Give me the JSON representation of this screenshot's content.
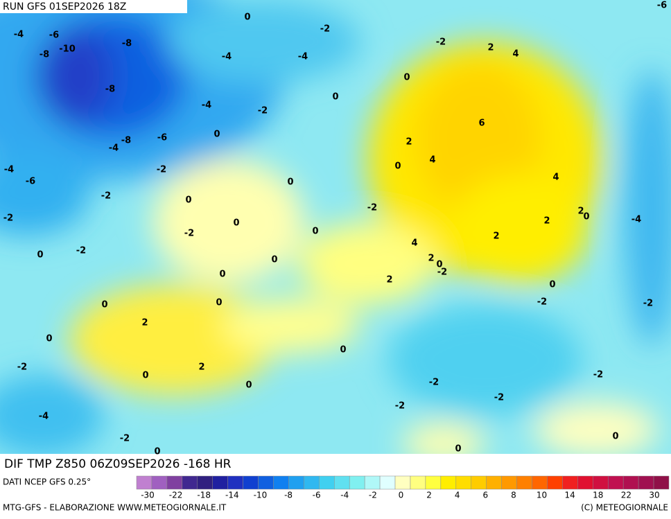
{
  "header": {
    "run": "RUN GFS 01SEP2026 18Z"
  },
  "map": {
    "title": "DIF TMP Z850 06Z09SEP2026 -168 HR",
    "labels": [
      0,
      -4,
      -6,
      -2,
      -6,
      -8,
      -10,
      -8,
      -4,
      -4,
      -2,
      2,
      4,
      0,
      -8,
      0,
      -4,
      -2,
      6,
      0,
      -4,
      -8,
      -6,
      2,
      4,
      0,
      -4,
      -2,
      -6,
      0,
      4,
      -2,
      0,
      -2,
      2,
      0,
      -2,
      0,
      2,
      -4,
      0,
      -2,
      2,
      4,
      -2,
      0,
      0,
      2,
      0,
      -2,
      0,
      2,
      0,
      0,
      -2,
      -2,
      0,
      2,
      0,
      0,
      -2,
      2,
      0,
      0,
      -2,
      -2,
      -2,
      -2,
      -4,
      -2,
      0,
      0,
      0
    ]
  },
  "legend": {
    "source": "DATI NCEP GFS 0.25°",
    "ticks": [
      -30,
      -22,
      -18,
      -14,
      -10,
      -8,
      -6,
      -4,
      -2,
      0,
      2,
      4,
      6,
      8,
      10,
      14,
      18,
      22,
      30
    ],
    "colors": [
      "#c080d0",
      "#a060c0",
      "#8040a0",
      "#402890",
      "#302080",
      "#2020a0",
      "#2030c0",
      "#1040d0",
      "#1060e0",
      "#1080f0",
      "#20a0f0",
      "#30b8f0",
      "#40d0f0",
      "#60e0f0",
      "#80f0f0",
      "#b0f8f8",
      "#e0ffff",
      "#ffffc0",
      "#ffff80",
      "#ffff40",
      "#ffee00",
      "#ffdd00",
      "#ffcc00",
      "#ffb000",
      "#ff9900",
      "#ff8000",
      "#ff6600",
      "#ff4000",
      "#f02020",
      "#e01030",
      "#d01040",
      "#c01050",
      "#b01050",
      "#a01050",
      "#901048"
    ]
  },
  "footer": {
    "credit": "MTG-GFS - ELABORAZIONE WWW.METEOGIORNALE.IT",
    "copyright": "(C) METEOGIORNALE"
  }
}
